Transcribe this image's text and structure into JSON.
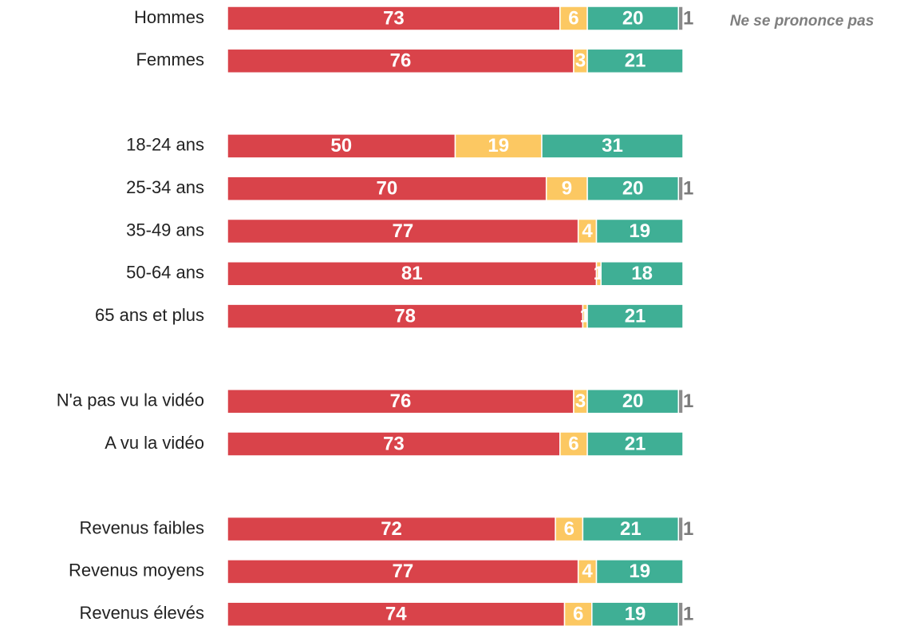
{
  "chart_data": {
    "type": "stacked-bar-horizontal",
    "categories": [
      "Hommes",
      "Femmes",
      null,
      "18-24 ans",
      "25-34 ans",
      "35-49 ans",
      "50-64 ans",
      "65 ans et plus",
      null,
      "N'a pas vu la vidéo",
      "A vu la vidéo",
      null,
      "Revenus faibles",
      "Revenus moyens",
      "Revenus élevés"
    ],
    "series": [
      {
        "color": "#d9434a",
        "values": [
          73,
          76,
          null,
          50,
          70,
          77,
          81,
          78,
          null,
          76,
          73,
          null,
          72,
          77,
          74
        ]
      },
      {
        "color": "#fcc862",
        "values": [
          6,
          3,
          null,
          19,
          9,
          4,
          1,
          1,
          null,
          3,
          6,
          null,
          6,
          4,
          6
        ]
      },
      {
        "color": "#3faf95",
        "values": [
          20,
          21,
          null,
          31,
          20,
          19,
          18,
          21,
          null,
          20,
          21,
          null,
          21,
          19,
          19
        ]
      },
      {
        "name": "Ne se prononce pas",
        "color": "#8c8c8c",
        "values": [
          1,
          0,
          null,
          0,
          1,
          0,
          0,
          0,
          null,
          1,
          0,
          null,
          1,
          0,
          1
        ]
      }
    ]
  }
}
